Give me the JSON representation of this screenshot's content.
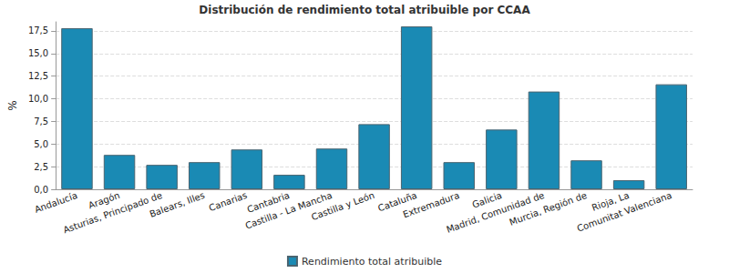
{
  "chart_data": {
    "type": "bar",
    "title": "Distribución de rendimiento total atribuible por CCAA",
    "y_label": "%",
    "categories": [
      "Andalucía",
      "Aragón",
      "Asturias, Principado de",
      "Balears, Illes",
      "Canarias",
      "Cantabria",
      "Castilla - La Mancha",
      "Castilla y León",
      "Cataluña",
      "Extremadura",
      "Galicia",
      "Madrid, Comunidad de",
      "Murcia, Región de",
      "Rioja, La",
      "Comunitat Valenciana"
    ],
    "series": [
      {
        "name": "Rendimiento total atribuible",
        "color": "#1a8ab4",
        "values": [
          17.8,
          3.8,
          2.7,
          3.0,
          4.4,
          1.6,
          4.5,
          7.2,
          18.0,
          3.0,
          6.6,
          10.8,
          3.2,
          1.0,
          11.6
        ]
      }
    ],
    "ylim": [
      0,
      18.5
    ],
    "yticks": [
      {
        "value": 0,
        "label": "0,0"
      },
      {
        "value": 2.5,
        "label": "2,5"
      },
      {
        "value": 5,
        "label": "5,0"
      },
      {
        "value": 7.5,
        "label": "7,5"
      },
      {
        "value": 10,
        "label": "10,0"
      },
      {
        "value": 12.5,
        "label": "12,5"
      },
      {
        "value": 15,
        "label": "15,0"
      },
      {
        "value": 17.5,
        "label": "17,5"
      }
    ],
    "grid": true,
    "legend": "bottom"
  }
}
